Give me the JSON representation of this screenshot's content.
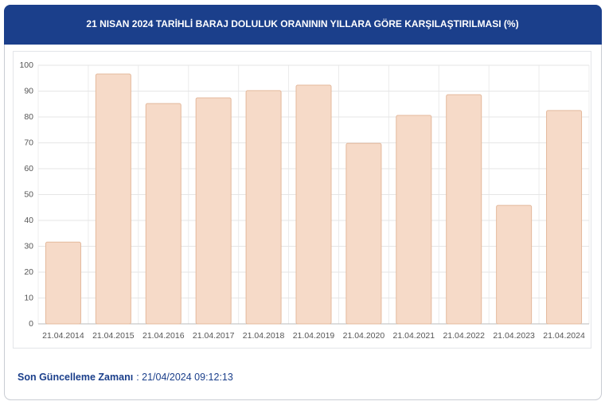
{
  "chart_data": {
    "type": "bar",
    "title": "21 NISAN 2024 TARİHLİ BARAJ DOLULUK ORANININ YILLARA GÖRE KARŞILAŞTIRILMASI (%)",
    "categories": [
      "21.04.2014",
      "21.04.2015",
      "21.04.2016",
      "21.04.2017",
      "21.04.2018",
      "21.04.2019",
      "21.04.2020",
      "21.04.2021",
      "21.04.2022",
      "21.04.2023",
      "21.04.2024"
    ],
    "values": [
      31.6,
      96.6,
      85.2,
      87.4,
      90.2,
      92.3,
      69.8,
      80.6,
      88.6,
      45.8,
      82.5
    ],
    "color": "#f6dac8",
    "ylim": [
      0,
      100
    ],
    "yticks": [
      0,
      10,
      20,
      30,
      40,
      50,
      60,
      70,
      80,
      90,
      100
    ],
    "grid": true
  },
  "footer": {
    "label": "Son Güncelleme Zamanı",
    "value": ": 21/04/2024 09:12:13"
  }
}
